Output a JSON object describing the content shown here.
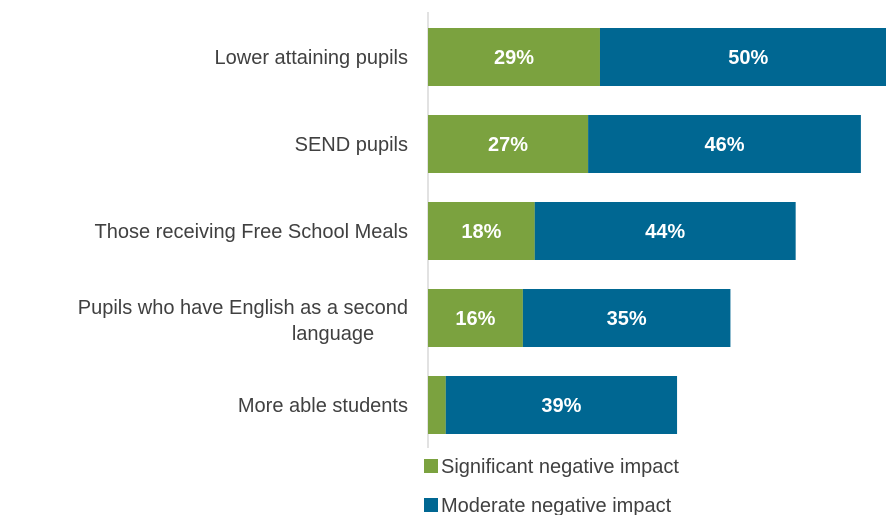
{
  "chart_data": {
    "type": "bar",
    "orientation": "horizontal",
    "stacked": true,
    "categories": [
      "Lower attaining pupils",
      "SEND pupils",
      "Those receiving Free School Meals",
      "Pupils who have English as a second language",
      "More able students"
    ],
    "series": [
      {
        "name": "Significant negative impact",
        "color": "#7BA23F",
        "values": [
          29,
          27,
          18,
          16,
          3
        ],
        "labels": [
          "29%",
          "27%",
          "18%",
          "16%",
          ""
        ]
      },
      {
        "name": "Moderate negative impact",
        "color": "#006792",
        "values": [
          50,
          46,
          44,
          35,
          39
        ],
        "labels": [
          "50%",
          "46%",
          "44%",
          "35%",
          "39%"
        ]
      }
    ],
    "xlim": [
      0,
      80
    ],
    "grid": false,
    "legend_position": "bottom"
  }
}
